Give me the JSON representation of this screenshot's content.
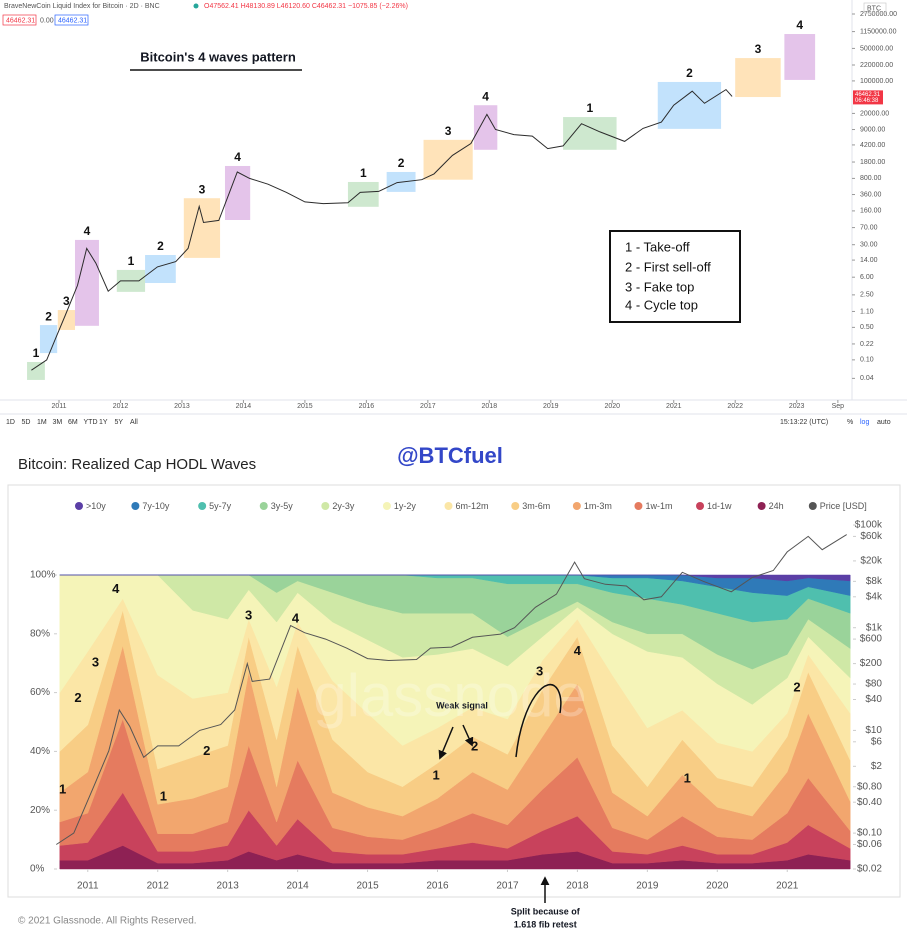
{
  "header": {
    "symbol": "BraveNewCoin Liquid Index for Bitcoin · 2D · BNC",
    "ohlc": "O47562.41 H48130.89 L46120.60 C46462.31 −1075.85 (−2.26%)",
    "boxes": [
      "46462.31",
      "0.00",
      "46462.31"
    ],
    "currency": "BTC"
  },
  "toolbar": {
    "ranges": [
      "1D",
      "5D",
      "1M",
      "3M",
      "6M",
      "YTD",
      "1Y",
      "5Y",
      "All"
    ],
    "clock": "15:13:22 (UTC)",
    "percent": "%",
    "log": "log",
    "auto": "auto"
  },
  "author": "@BTCfuel",
  "chart_data": [
    {
      "type": "line",
      "title": "Bitcoin's 4 waves pattern",
      "log_scale": true,
      "legend_box": [
        "1 - Take-off",
        "2 - First sell-off",
        "3 - Fake top",
        "4 - Cycle top"
      ],
      "xlim": [
        2010.04,
        2023.9
      ],
      "xticks": [
        2011,
        2012,
        2013,
        2014,
        2015,
        2016,
        2017,
        2018,
        2019,
        2020,
        2021,
        2022,
        2023,
        {
          "value": 2023.67,
          "label": "Sep"
        }
      ],
      "ylim": [
        0.0137,
        5500000
      ],
      "yticks": [
        {
          "value": 2750000,
          "label": "2750000.00"
        },
        {
          "value": 1150000,
          "label": "1150000.00"
        },
        {
          "value": 500000,
          "label": "500000.00"
        },
        {
          "value": 220000,
          "label": "220000.00"
        },
        {
          "value": 100000,
          "label": "100000.00"
        },
        {
          "value": 20000,
          "label": "20000.00"
        },
        {
          "value": 9000,
          "label": "9000.00"
        },
        {
          "value": 4200,
          "label": "4200.00"
        },
        {
          "value": 1800,
          "label": "1800.00"
        },
        {
          "value": 800,
          "label": "800.00"
        },
        {
          "value": 360,
          "label": "360.00"
        },
        {
          "value": 160,
          "label": "160.00"
        },
        {
          "value": 70,
          "label": "70.00"
        },
        {
          "value": 30,
          "label": "30.00"
        },
        {
          "value": 14,
          "label": "14.00"
        },
        {
          "value": 6,
          "label": "6.00"
        },
        {
          "value": 2.5,
          "label": "2.50"
        },
        {
          "value": 1.1,
          "label": "1.10"
        },
        {
          "value": 0.5,
          "label": "0.50"
        },
        {
          "value": 0.22,
          "label": "0.22"
        },
        {
          "value": 0.1,
          "label": "0.10"
        },
        {
          "value": 0.04,
          "label": "0.04"
        }
      ],
      "last_price": {
        "value": 46462.31,
        "label": "46462.31"
      },
      "countdown": "06:46:38",
      "x": [
        2010.55,
        2010.8,
        2010.95,
        2011.1,
        2011.3,
        2011.45,
        2011.6,
        2011.8,
        2012.0,
        2012.3,
        2012.6,
        2012.9,
        2013.1,
        2013.28,
        2013.35,
        2013.6,
        2013.9,
        2014.1,
        2014.4,
        2014.7,
        2015.0,
        2015.3,
        2015.7,
        2015.9,
        2016.2,
        2016.5,
        2016.9,
        2017.1,
        2017.4,
        2017.7,
        2017.96,
        2018.1,
        2018.4,
        2018.7,
        2018.95,
        2019.2,
        2019.5,
        2019.8,
        2020.2,
        2020.5,
        2020.8,
        2021.0,
        2021.3,
        2021.5,
        2021.85,
        2021.95
      ],
      "series": [
        {
          "color": "#2b2b2b",
          "values": [
            0.06,
            0.1,
            0.3,
            0.9,
            4,
            25,
            12,
            3,
            5,
            5,
            10,
            13,
            25,
            200,
            90,
            100,
            1100,
            800,
            600,
            400,
            250,
            230,
            240,
            400,
            420,
            650,
            750,
            1000,
            2500,
            4500,
            19000,
            9000,
            7000,
            6500,
            3500,
            4000,
            12000,
            8000,
            5000,
            9500,
            13000,
            30000,
            60000,
            33000,
            65000,
            46462.31
          ]
        }
      ],
      "wave_boxes": [
        {
          "label": "1",
          "x": [
            2010.48,
            2010.77
          ],
          "y": [
            0.037,
            0.09
          ],
          "color": "#a5d6a7"
        },
        {
          "label": "2",
          "x": [
            2010.69,
            2010.97
          ],
          "y": [
            0.14,
            0.56
          ],
          "color": "#90caf9"
        },
        {
          "label": "3",
          "x": [
            2010.98,
            2011.26
          ],
          "y": [
            0.44,
            1.18
          ],
          "color": "#ffcc80"
        },
        {
          "label": "4",
          "x": [
            2011.26,
            2011.65
          ],
          "y": [
            0.54,
            38
          ],
          "color": "#ce93d8"
        },
        {
          "label": "1",
          "x": [
            2011.94,
            2012.4
          ],
          "y": [
            2.9,
            8.6
          ],
          "color": "#a5d6a7"
        },
        {
          "label": "2",
          "x": [
            2012.4,
            2012.9
          ],
          "y": [
            4.5,
            18
          ],
          "color": "#90caf9"
        },
        {
          "label": "3",
          "x": [
            2013.03,
            2013.62
          ],
          "y": [
            15.6,
            300
          ],
          "color": "#ffcc80"
        },
        {
          "label": "4",
          "x": [
            2013.7,
            2014.11
          ],
          "y": [
            102,
            1480
          ],
          "color": "#ce93d8"
        },
        {
          "label": "1",
          "x": [
            2015.7,
            2016.2
          ],
          "y": [
            196,
            670
          ],
          "color": "#a5d6a7"
        },
        {
          "label": "2",
          "x": [
            2016.33,
            2016.8
          ],
          "y": [
            410,
            1100
          ],
          "color": "#90caf9"
        },
        {
          "label": "3",
          "x": [
            2016.93,
            2017.73
          ],
          "y": [
            750,
            5400
          ],
          "color": "#ffcc80"
        },
        {
          "label": "4",
          "x": [
            2017.75,
            2018.13
          ],
          "y": [
            3300,
            30000
          ],
          "color": "#ce93d8"
        },
        {
          "label": "1",
          "x": [
            2019.2,
            2020.07
          ],
          "y": [
            3300,
            16700
          ],
          "color": "#a5d6a7"
        },
        {
          "label": "2",
          "x": [
            2020.74,
            2021.77
          ],
          "y": [
            9300,
            95000
          ],
          "color": "#90caf9"
        },
        {
          "label": "3",
          "x": [
            2022.0,
            2022.74
          ],
          "y": [
            45000,
            310000
          ],
          "color": "#ffcc80"
        },
        {
          "label": "4",
          "x": [
            2022.8,
            2023.3
          ],
          "y": [
            105000,
            1020000
          ],
          "color": "#ce93d8"
        }
      ]
    },
    {
      "type": "stacked_area",
      "title": "Bitcoin: Realized Cap HODL Waves",
      "watermark": "glassnode",
      "copyright": "© 2021 Glassnode. All Rights Reserved.",
      "xlim": [
        2010.56,
        2021.94
      ],
      "xticks": [
        2011,
        2012,
        2013,
        2014,
        2015,
        2016,
        2017,
        2018,
        2019,
        2020,
        2021
      ],
      "ylim": [
        0,
        100
      ],
      "yticks": [
        {
          "value": 0,
          "label": "0%"
        },
        {
          "value": 20,
          "label": "20%"
        },
        {
          "value": 40,
          "label": "40%"
        },
        {
          "value": 60,
          "label": "60%"
        },
        {
          "value": 80,
          "label": "80%"
        },
        {
          "value": 100,
          "label": "100%"
        }
      ],
      "y2lim": [
        0.02,
        156700
      ],
      "y2_log": true,
      "y2ticks": [
        {
          "value": 100000,
          "label": "$100k"
        },
        {
          "value": 60000,
          "label": "$60k"
        },
        {
          "value": 20000,
          "label": "$20k"
        },
        {
          "value": 8000,
          "label": "$8k"
        },
        {
          "value": 4000,
          "label": "$4k"
        },
        {
          "value": 1000,
          "label": "$1k"
        },
        {
          "value": 600,
          "label": "$600"
        },
        {
          "value": 200,
          "label": "$200"
        },
        {
          "value": 80,
          "label": "$80"
        },
        {
          "value": 40,
          "label": "$40"
        },
        {
          "value": 10,
          "label": "$10"
        },
        {
          "value": 6,
          "label": "$6"
        },
        {
          "value": 2,
          "label": "$2"
        },
        {
          "value": 0.8,
          "label": "$0.80"
        },
        {
          "value": 0.4,
          "label": "$0.40"
        },
        {
          "value": 0.1,
          "label": "$0.10"
        },
        {
          "value": 0.06,
          "label": "$0.06"
        },
        {
          "value": 0.02,
          "label": "$0.02"
        }
      ],
      "x": [
        2010.6,
        2011.0,
        2011.5,
        2012.0,
        2012.5,
        2013.0,
        2013.3,
        2013.7,
        2014.0,
        2014.5,
        2015.0,
        2015.5,
        2016.0,
        2016.5,
        2017.0,
        2017.5,
        2018.0,
        2018.5,
        2019.0,
        2019.5,
        2020.0,
        2020.5,
        2021.0,
        2021.3,
        2021.9
      ],
      "series": [
        {
          "name": ">10y",
          "color": "#5b3fa6",
          "values": [
            0,
            0,
            0,
            0,
            0,
            0,
            0,
            0,
            0,
            0,
            0,
            0,
            0,
            0,
            0,
            0,
            0,
            0,
            0,
            0,
            1,
            1,
            2,
            1,
            2
          ]
        },
        {
          "name": "7y-10y",
          "color": "#2f7ab8",
          "values": [
            0,
            0,
            0,
            0,
            0,
            0,
            0,
            0,
            0,
            0,
            0,
            0,
            0,
            0,
            0,
            0,
            0,
            1,
            1,
            2,
            3,
            5,
            5,
            3,
            5
          ]
        },
        {
          "name": "5y-7y",
          "color": "#4fbfae",
          "values": [
            0,
            0,
            0,
            0,
            0,
            0,
            0,
            0,
            0,
            0,
            0,
            0,
            1,
            1,
            3,
            3,
            3,
            5,
            7,
            8,
            9,
            10,
            8,
            4,
            6
          ]
        },
        {
          "name": "3y-5y",
          "color": "#9ad39a",
          "values": [
            0,
            0,
            0,
            0,
            0,
            0,
            0,
            6,
            2,
            6,
            10,
            13,
            12,
            12,
            18,
            12,
            6,
            10,
            12,
            10,
            14,
            16,
            12,
            7,
            12
          ]
        },
        {
          "name": "2y-3y",
          "color": "#cfe8a6",
          "values": [
            0,
            0,
            0,
            0,
            12,
            15,
            5,
            10,
            4,
            10,
            12,
            15,
            14,
            12,
            10,
            6,
            2,
            4,
            6,
            8,
            10,
            12,
            8,
            6,
            10
          ]
        },
        {
          "name": "1y-2y",
          "color": "#f5f4b8",
          "values": [
            40,
            26,
            8,
            34,
            30,
            25,
            10,
            22,
            10,
            20,
            25,
            30,
            25,
            20,
            18,
            8,
            4,
            14,
            26,
            18,
            20,
            16,
            12,
            6,
            12
          ]
        },
        {
          "name": "6m-12m",
          "color": "#fbe6a6",
          "values": [
            20,
            25,
            4,
            32,
            20,
            18,
            6,
            18,
            8,
            20,
            20,
            14,
            12,
            10,
            12,
            10,
            6,
            24,
            20,
            10,
            12,
            12,
            8,
            6,
            16
          ]
        },
        {
          "name": "3m-6m",
          "color": "#f8cd85",
          "values": [
            14,
            16,
            12,
            12,
            14,
            14,
            12,
            16,
            14,
            18,
            12,
            10,
            12,
            12,
            12,
            16,
            16,
            16,
            10,
            12,
            10,
            10,
            12,
            14,
            14
          ]
        },
        {
          "name": "1m-3m",
          "color": "#f2a66e",
          "values": [
            10,
            14,
            25,
            10,
            12,
            12,
            25,
            12,
            25,
            12,
            10,
            8,
            10,
            14,
            12,
            18,
            25,
            12,
            8,
            14,
            10,
            8,
            14,
            22,
            10
          ]
        },
        {
          "name": "1w-1m",
          "color": "#e57b5f",
          "values": [
            8,
            10,
            25,
            6,
            6,
            8,
            22,
            8,
            20,
            8,
            6,
            5,
            7,
            10,
            8,
            14,
            20,
            8,
            5,
            10,
            6,
            5,
            10,
            16,
            6
          ]
        },
        {
          "name": "1d-1w",
          "color": "#c8425c",
          "values": [
            5,
            6,
            18,
            4,
            4,
            5,
            14,
            5,
            12,
            4,
            3,
            3,
            4,
            6,
            4,
            8,
            12,
            4,
            3,
            5,
            3,
            3,
            6,
            10,
            4
          ]
        },
        {
          "name": "24h",
          "color": "#8e2154",
          "values": [
            3,
            3,
            8,
            2,
            2,
            3,
            6,
            3,
            5,
            2,
            2,
            2,
            3,
            3,
            3,
            5,
            6,
            2,
            2,
            3,
            2,
            2,
            3,
            5,
            3
          ]
        }
      ],
      "price": {
        "name": "Price [USD]",
        "color": "#555555",
        "axis": "y2",
        "x": [
          2010.55,
          2010.8,
          2010.95,
          2011.1,
          2011.3,
          2011.45,
          2011.6,
          2011.8,
          2012.0,
          2012.3,
          2012.6,
          2012.9,
          2013.1,
          2013.28,
          2013.35,
          2013.6,
          2013.9,
          2014.1,
          2014.4,
          2014.7,
          2015.0,
          2015.3,
          2015.7,
          2015.9,
          2016.2,
          2016.5,
          2016.9,
          2017.1,
          2017.4,
          2017.7,
          2017.96,
          2018.1,
          2018.4,
          2018.7,
          2018.95,
          2019.2,
          2019.5,
          2019.8,
          2020.2,
          2020.5,
          2020.8,
          2021.0,
          2021.3,
          2021.5,
          2021.85
        ],
        "values": [
          0.06,
          0.1,
          0.3,
          0.9,
          4,
          25,
          12,
          3,
          5,
          5,
          10,
          13,
          25,
          200,
          90,
          100,
          1100,
          800,
          600,
          400,
          250,
          230,
          240,
          400,
          420,
          650,
          750,
          1000,
          2500,
          4500,
          19000,
          9000,
          7000,
          6500,
          3500,
          4000,
          12000,
          8000,
          5000,
          9500,
          13000,
          30000,
          60000,
          33000,
          65000
        ]
      },
      "annotations": [
        {
          "text": "1",
          "x": 2010.64,
          "y": 26.9
        },
        {
          "text": "2",
          "x": 2010.86,
          "y": 58
        },
        {
          "text": "3",
          "x": 2011.11,
          "y": 70
        },
        {
          "text": "4",
          "x": 2011.4,
          "y": 95
        },
        {
          "text": "1",
          "x": 2012.08,
          "y": 24.5
        },
        {
          "text": "2",
          "x": 2012.7,
          "y": 40
        },
        {
          "text": "3",
          "x": 2013.3,
          "y": 86
        },
        {
          "text": "4",
          "x": 2013.97,
          "y": 85
        },
        {
          "text": "1",
          "x": 2015.98,
          "y": 31.6
        },
        {
          "text": "2",
          "x": 2016.53,
          "y": 41.5
        },
        {
          "text": "3",
          "x": 2017.46,
          "y": 67
        },
        {
          "text": "4",
          "x": 2018.0,
          "y": 74
        },
        {
          "text": "1",
          "x": 2019.57,
          "y": 30.6
        },
        {
          "text": "2",
          "x": 2021.14,
          "y": 61.6
        }
      ],
      "weak_signal": {
        "text": "Weak signal",
        "x": 2016.35,
        "y": 55.4
      },
      "split_note": {
        "lines": [
          "Split because of",
          "1.618 fib retest"
        ],
        "x": 2017.54
      }
    }
  ]
}
